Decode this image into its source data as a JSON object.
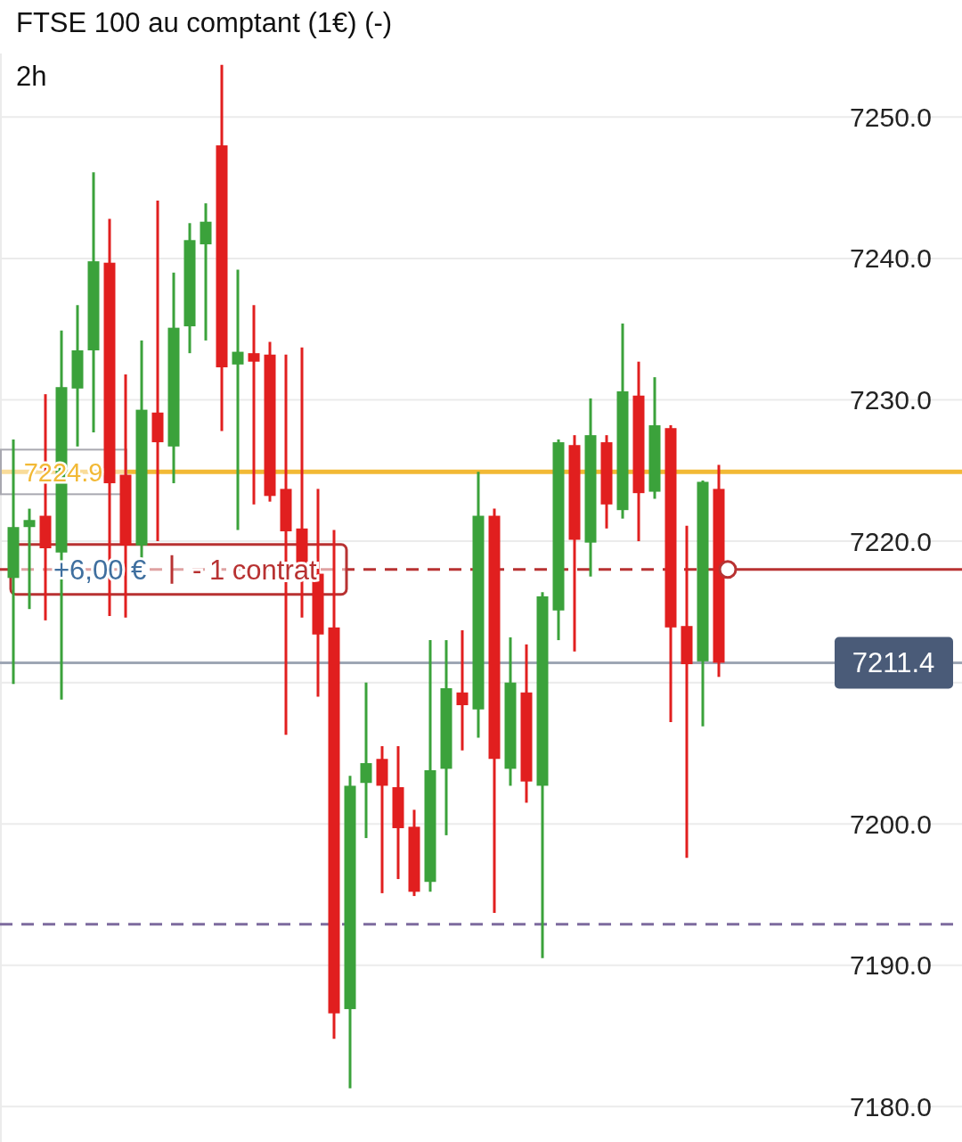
{
  "chart_data": {
    "type": "candlestick",
    "title": "FTSE 100 au comptant (1€) (-)",
    "subtitle": "2h",
    "categories": [
      null,
      null,
      null,
      null,
      null,
      null,
      null,
      null,
      null,
      null,
      null,
      null,
      null,
      null,
      null,
      null,
      null,
      null,
      null,
      null,
      null,
      null,
      null,
      null,
      null,
      null,
      null,
      null,
      null,
      null,
      null,
      null,
      null,
      null,
      null,
      null,
      null,
      null,
      null,
      null,
      null,
      null,
      null,
      null,
      null
    ],
    "ohlc": [
      [
        7217.4,
        7227.2,
        7209.9,
        7221.0
      ],
      [
        7221.0,
        7222.3,
        7215.2,
        7221.5
      ],
      [
        7221.8,
        7230.4,
        7214.4,
        7219.5
      ],
      [
        7219.2,
        7234.9,
        7208.8,
        7230.9
      ],
      [
        7230.8,
        7236.7,
        7226.7,
        7233.5
      ],
      [
        7233.5,
        7246.1,
        7227.7,
        7239.8
      ],
      [
        7239.7,
        7242.8,
        7214.7,
        7224.1
      ],
      [
        7224.7,
        7231.8,
        7214.6,
        7219.7
      ],
      [
        7219.7,
        7234.2,
        7218.7,
        7229.3
      ],
      [
        7229.1,
        7244.1,
        7220.0,
        7227.0
      ],
      [
        7226.7,
        7239.0,
        7224.1,
        7235.1
      ],
      [
        7235.2,
        7242.5,
        7233.3,
        7241.3
      ],
      [
        7241.0,
        7243.9,
        7234.2,
        7242.6
      ],
      [
        7248.0,
        7253.7,
        7227.8,
        7232.3
      ],
      [
        7232.5,
        7239.2,
        7220.8,
        7233.4
      ],
      [
        7233.3,
        7236.7,
        7222.6,
        7232.7
      ],
      [
        7233.2,
        7234.1,
        7222.8,
        7223.2
      ],
      [
        7223.7,
        7233.2,
        7206.3,
        7220.7
      ],
      [
        7220.9,
        7233.7,
        7214.6,
        7217.4
      ],
      [
        7217.7,
        7223.7,
        7209.0,
        7213.4
      ],
      [
        7213.9,
        7220.8,
        7184.8,
        7186.6
      ],
      [
        7186.9,
        7203.4,
        7181.3,
        7202.7
      ],
      [
        7202.9,
        7210.0,
        7199.0,
        7204.3
      ],
      [
        7204.6,
        7205.5,
        7195.1,
        7202.7
      ],
      [
        7202.6,
        7205.5,
        7196.1,
        7199.7
      ],
      [
        7199.8,
        7201.0,
        7194.9,
        7195.2
      ],
      [
        7195.9,
        7213.0,
        7195.2,
        7203.8
      ],
      [
        7203.9,
        7213.0,
        7199.2,
        7209.6
      ],
      [
        7209.3,
        7213.7,
        7205.2,
        7208.4
      ],
      [
        7208.1,
        7224.9,
        7206.1,
        7221.8
      ],
      [
        7221.8,
        7222.3,
        7193.7,
        7204.6
      ],
      [
        7203.9,
        7213.2,
        7202.7,
        7210.0
      ],
      [
        7209.3,
        7212.7,
        7201.5,
        7203.0
      ],
      [
        7202.7,
        7216.4,
        7190.5,
        7216.1
      ],
      [
        7215.1,
        7227.2,
        7213.0,
        7227.0
      ],
      [
        7226.8,
        7227.5,
        7212.2,
        7220.1
      ],
      [
        7219.9,
        7230.1,
        7217.5,
        7227.5
      ],
      [
        7227.0,
        7227.5,
        7220.9,
        7222.6
      ],
      [
        7222.2,
        7235.4,
        7221.6,
        7230.6
      ],
      [
        7230.3,
        7232.7,
        7220.0,
        7223.4
      ],
      [
        7223.5,
        7231.6,
        7223.0,
        7228.2
      ],
      [
        7228.0,
        7228.2,
        7207.2,
        7213.9
      ],
      [
        7214.0,
        7221.1,
        7197.6,
        7211.3
      ],
      [
        7211.5,
        7224.3,
        7206.9,
        7224.2
      ],
      [
        7223.7,
        7225.4,
        7210.4,
        7211.4
      ]
    ],
    "ylim": [
      7177.5,
      7254.5
    ],
    "yticks": [
      {
        "value": 7180,
        "label": "7180.0"
      },
      {
        "value": 7190,
        "label": "7190.0"
      },
      {
        "value": 7200,
        "label": "7200.0"
      },
      {
        "value": 7210,
        "label": null
      },
      {
        "value": 7220,
        "label": "7220.0"
      },
      {
        "value": 7230,
        "label": "7230.0"
      },
      {
        "value": 7240,
        "label": "7240.0"
      },
      {
        "value": 7250,
        "label": "7250.0"
      }
    ],
    "grid": "y",
    "tick_labels": "y",
    "ref_lines": [
      {
        "axis": "y",
        "value": 7224.9,
        "label": "7224.9",
        "color": "#f2b935",
        "line_style": "solid"
      },
      {
        "axis": "y",
        "value": 7211.4,
        "label": "7211.4",
        "color": "#9ea6b4",
        "line_style": "solid"
      },
      {
        "axis": "y",
        "value": 7218.0,
        "label": "+6,00 €",
        "color": "#b83232",
        "line_style": "dashed"
      },
      {
        "axis": "y",
        "value": 7192.9,
        "color": "#7d6b9e",
        "line_style": "dashed"
      }
    ],
    "annotations": [
      "- 1 contrat"
    ]
  }
}
